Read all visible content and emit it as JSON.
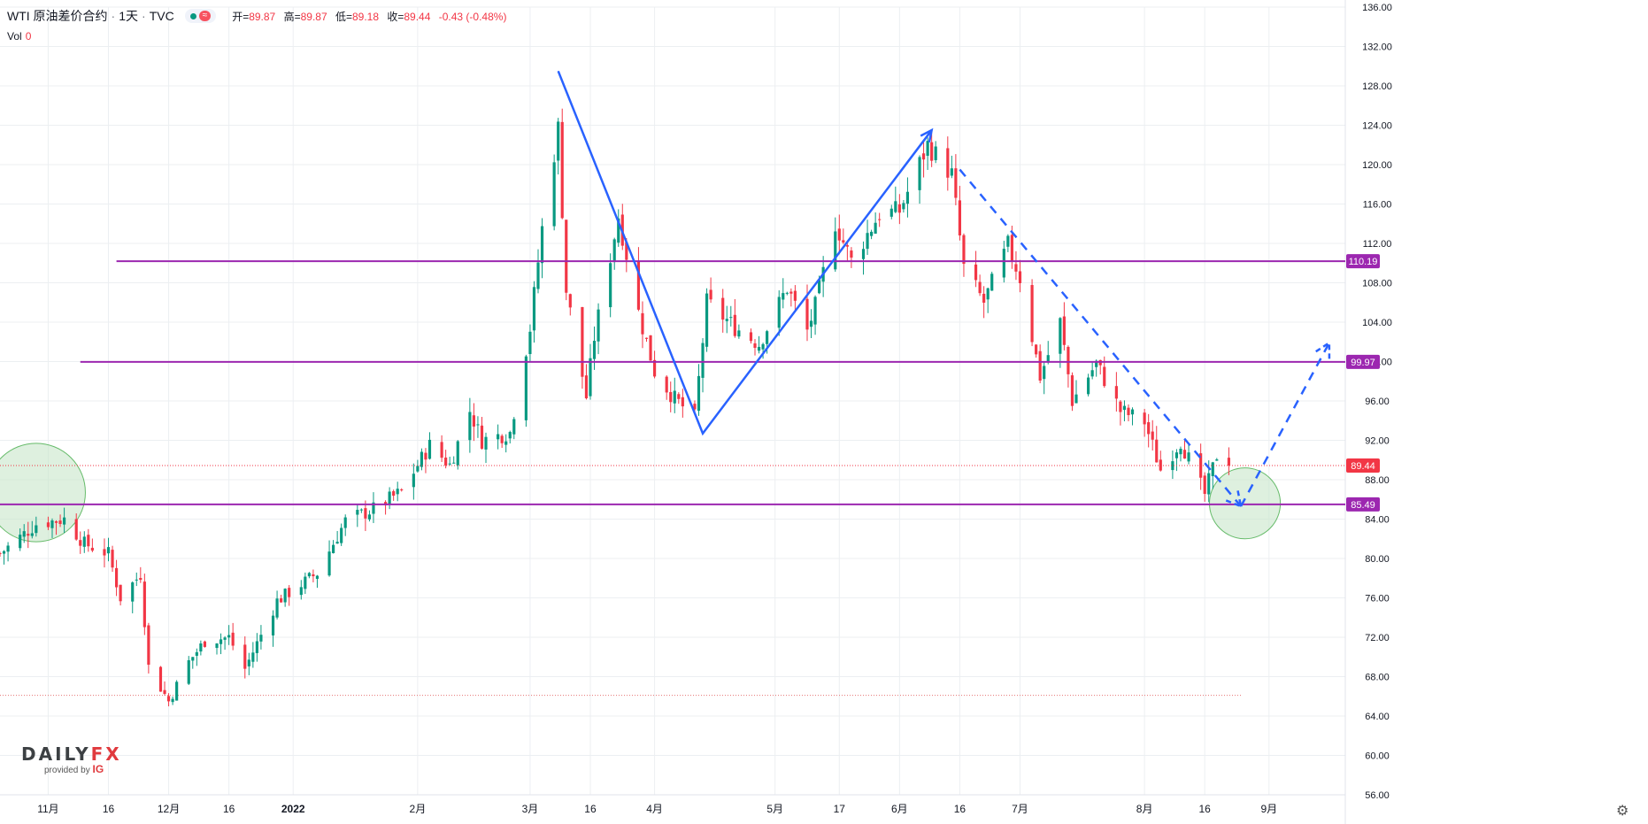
{
  "header": {
    "symbol": "WTI 原油差价合约",
    "interval": "1天",
    "source": "TVC",
    "wave_icon": "≈",
    "ohlc": {
      "open_label": "开=",
      "open": "89.87",
      "high_label": "高=",
      "high": "89.87",
      "low_label": "低=",
      "low": "89.18",
      "close_label": "收=",
      "close": "89.44",
      "change": "-0.43 (-0.48%)"
    },
    "vol_label": "Vol",
    "vol_value": "0"
  },
  "logo": {
    "brand_main": "DAILY",
    "brand_fx": "FX",
    "provided_by": "provided by",
    "ig": "IG"
  },
  "icons": {
    "settings": "gear-icon"
  },
  "colors": {
    "up": "#089981",
    "down": "#f23645",
    "level": "#9c27b0",
    "drawing": "#2962ff",
    "circle_fill": "#c8e6c9",
    "circle_stroke": "#66bb6a",
    "price_label": "#f23645",
    "grid": "#eceff2"
  },
  "chart_data": {
    "type": "candlestick",
    "y_axis": {
      "position": "right",
      "range": [
        56,
        136
      ],
      "ticks": [
        56,
        60,
        64,
        68,
        72,
        76,
        80,
        84,
        88,
        92,
        96,
        100,
        104,
        108,
        112,
        116,
        120,
        124,
        128,
        132,
        136
      ],
      "tick_labels": [
        "56.00",
        "60.00",
        "64.00",
        "68.00",
        "72.00",
        "76.00",
        "80.00",
        "84.00",
        "88.00",
        "92.00",
        "96.00",
        "100.00",
        "104.00",
        "108.00",
        "112.00",
        "116.00",
        "120.00",
        "124.00",
        "128.00",
        "132.00",
        "136.00"
      ]
    },
    "x_axis": {
      "range": [
        "2021-10-20",
        "2022-09-20"
      ],
      "ticks": [
        {
          "date": "2021-11-01",
          "label": "11月"
        },
        {
          "date": "2021-11-16",
          "label": "16"
        },
        {
          "date": "2021-12-01",
          "label": "12月"
        },
        {
          "date": "2021-12-16",
          "label": "16"
        },
        {
          "date": "2022-01-01",
          "label": "2022"
        },
        {
          "date": "2022-02-01",
          "label": "2月"
        },
        {
          "date": "2022-03-01",
          "label": "3月"
        },
        {
          "date": "2022-03-16",
          "label": "16"
        },
        {
          "date": "2022-04-01",
          "label": "4月"
        },
        {
          "date": "2022-05-01",
          "label": "5月"
        },
        {
          "date": "2022-05-17",
          "label": "17"
        },
        {
          "date": "2022-06-01",
          "label": "6月"
        },
        {
          "date": "2022-06-16",
          "label": "16"
        },
        {
          "date": "2022-07-01",
          "label": "7月"
        },
        {
          "date": "2022-08-01",
          "label": "8月"
        },
        {
          "date": "2022-08-16",
          "label": "16"
        },
        {
          "date": "2022-09-01",
          "label": "9月"
        }
      ]
    },
    "grid": true,
    "levels": [
      {
        "value": 110.19,
        "label": "110.19",
        "start": "2021-11-18"
      },
      {
        "value": 99.97,
        "label": "99.97",
        "start": "2021-11-09"
      },
      {
        "value": 85.49,
        "label": "85.49",
        "start": "2021-10-20"
      }
    ],
    "last_price": {
      "value": 89.44,
      "label": "89.44"
    },
    "dotted_low_line": {
      "value": 66.1,
      "end": "2022-08-25"
    },
    "close_path": [
      [
        "2021-10-20",
        80.5
      ],
      [
        "2021-10-29",
        83.5
      ],
      [
        "2021-11-05",
        84.0
      ],
      [
        "2021-11-10",
        81.5
      ],
      [
        "2021-11-16",
        80.5
      ],
      [
        "2021-11-19",
        76.0
      ],
      [
        "2021-11-24",
        78.4
      ],
      [
        "2021-11-26",
        69.0
      ],
      [
        "2021-12-01",
        65.5
      ],
      [
        "2021-12-06",
        69.5
      ],
      [
        "2021-12-10",
        71.6
      ],
      [
        "2021-12-16",
        72.0
      ],
      [
        "2021-12-20",
        68.8
      ],
      [
        "2021-12-28",
        75.7
      ],
      [
        "2022-01-07",
        78.5
      ],
      [
        "2022-01-14",
        83.8
      ],
      [
        "2022-01-21",
        85.0
      ],
      [
        "2022-01-28",
        86.8
      ],
      [
        "2022-02-04",
        91.5
      ],
      [
        "2022-02-09",
        89.5
      ],
      [
        "2022-02-14",
        95.0
      ],
      [
        "2022-02-17",
        92.0
      ],
      [
        "2022-02-24",
        92.8
      ],
      [
        "2022-03-01",
        103.4
      ],
      [
        "2022-03-04",
        113.5
      ],
      [
        "2022-03-08",
        123.7
      ],
      [
        "2022-03-10",
        107.2
      ],
      [
        "2022-03-15",
        96.4
      ],
      [
        "2022-03-17",
        102.5
      ],
      [
        "2022-03-23",
        114.8
      ],
      [
        "2022-03-28",
        105.0
      ],
      [
        "2022-04-01",
        99.0
      ],
      [
        "2022-04-06",
        96.2
      ],
      [
        "2022-04-11",
        94.3
      ],
      [
        "2022-04-14",
        106.0
      ],
      [
        "2022-04-21",
        103.5
      ],
      [
        "2022-04-27",
        101.8
      ],
      [
        "2022-05-04",
        107.5
      ],
      [
        "2022-05-09",
        103.1
      ],
      [
        "2022-05-11",
        105.6
      ],
      [
        "2022-05-16",
        114.1
      ],
      [
        "2022-05-20",
        110.2
      ],
      [
        "2022-05-27",
        115.0
      ],
      [
        "2022-06-01",
        115.3
      ],
      [
        "2022-06-08",
        122.0
      ],
      [
        "2022-06-14",
        119.0
      ],
      [
        "2022-06-17",
        109.5
      ],
      [
        "2022-06-22",
        106.0
      ],
      [
        "2022-06-28",
        111.8
      ],
      [
        "2022-07-01",
        108.5
      ],
      [
        "2022-07-06",
        98.5
      ],
      [
        "2022-07-11",
        104.0
      ],
      [
        "2022-07-14",
        96.0
      ],
      [
        "2022-07-20",
        99.8
      ],
      [
        "2022-07-26",
        95.0
      ],
      [
        "2022-08-01",
        93.9
      ],
      [
        "2022-08-05",
        89.0
      ],
      [
        "2022-08-10",
        91.9
      ],
      [
        "2022-08-16",
        86.5
      ],
      [
        "2022-08-19",
        90.5
      ],
      [
        "2022-08-22",
        89.44
      ]
    ],
    "annotations": {
      "trend_lines": [
        {
          "style": "solid",
          "arrow": true,
          "points": [
            [
              "2022-03-08",
              129.5
            ],
            [
              "2022-04-13",
              92.7
            ],
            [
              "2022-06-09",
              123.5
            ]
          ]
        }
      ],
      "projections": [
        {
          "style": "dashed",
          "points": [
            [
              "2022-06-16",
              119.5
            ],
            [
              "2022-08-25",
              85.3
            ]
          ]
        },
        {
          "style": "dashed",
          "points": [
            [
              "2022-08-25",
              85.3
            ],
            [
              "2022-09-16",
              101.9
            ]
          ]
        }
      ],
      "circles": [
        {
          "center": [
            "2021-10-29",
            86.7
          ],
          "radius_price": 5.0
        },
        {
          "center": [
            "2022-08-26",
            85.6
          ],
          "radius_price": 3.6
        }
      ]
    }
  }
}
